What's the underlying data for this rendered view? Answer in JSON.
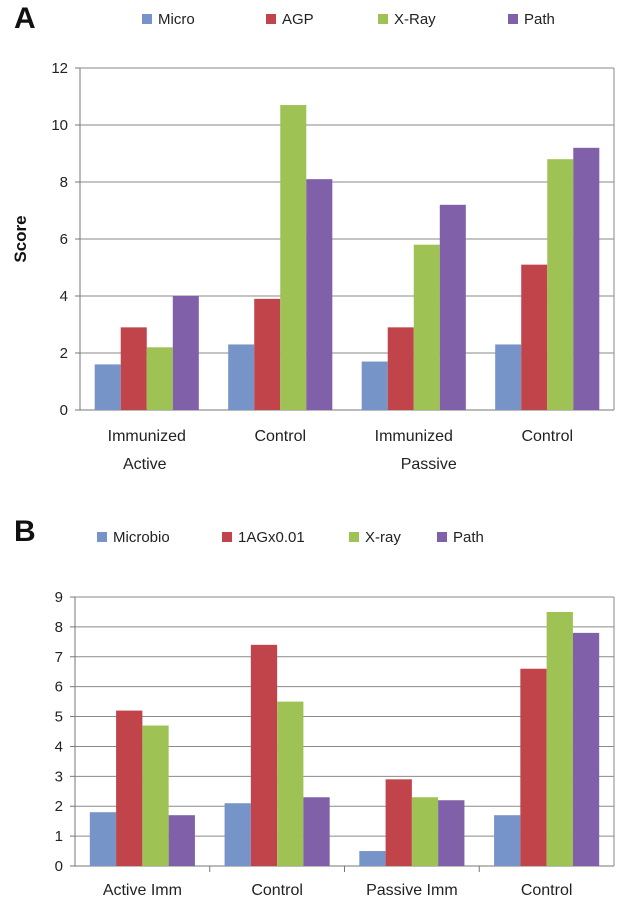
{
  "chart_data": [
    {
      "panel_label": "A",
      "type": "bar",
      "categories": [
        "Immunized",
        "Control",
        "Immunized",
        "Control"
      ],
      "groups": [
        {
          "label": "Active",
          "categories": [
            0,
            1
          ]
        },
        {
          "label": "Passive",
          "categories": [
            2,
            3
          ]
        }
      ],
      "series": [
        {
          "name": "Micro",
          "color": "#7694c8",
          "values": [
            1.6,
            2.3,
            1.7,
            2.3
          ]
        },
        {
          "name": "AGP",
          "color": "#c0444a",
          "values": [
            2.9,
            3.9,
            2.9,
            5.1
          ]
        },
        {
          "name": "X-Ray",
          "color": "#9fc255",
          "values": [
            2.2,
            10.7,
            5.8,
            8.8
          ]
        },
        {
          "name": "Path",
          "color": "#8060a8",
          "values": [
            4.0,
            8.1,
            7.2,
            9.2
          ]
        }
      ],
      "ylabel": "Score",
      "ylim": [
        0,
        12
      ],
      "yticks": [
        0,
        2,
        4,
        6,
        8,
        10,
        12
      ],
      "legend": "top",
      "grid": true
    },
    {
      "panel_label": "B",
      "type": "bar",
      "categories": [
        "Active Imm",
        "Control",
        "Passive Imm",
        "Control"
      ],
      "series": [
        {
          "name": "Microbio",
          "color": "#7694c8",
          "values": [
            1.8,
            2.1,
            0.5,
            1.7
          ]
        },
        {
          "name": "1AGx0.01",
          "color": "#c0444a",
          "values": [
            5.2,
            7.4,
            2.9,
            6.6
          ]
        },
        {
          "name": "X-ray",
          "color": "#9fc255",
          "values": [
            4.7,
            5.5,
            2.3,
            8.5
          ]
        },
        {
          "name": "Path",
          "color": "#8060a8",
          "values": [
            1.7,
            2.3,
            2.2,
            7.8
          ]
        }
      ],
      "ylim": [
        0,
        9
      ],
      "yticks": [
        0,
        1,
        2,
        3,
        4,
        5,
        6,
        7,
        8,
        9
      ],
      "legend": "top",
      "grid": true
    }
  ]
}
